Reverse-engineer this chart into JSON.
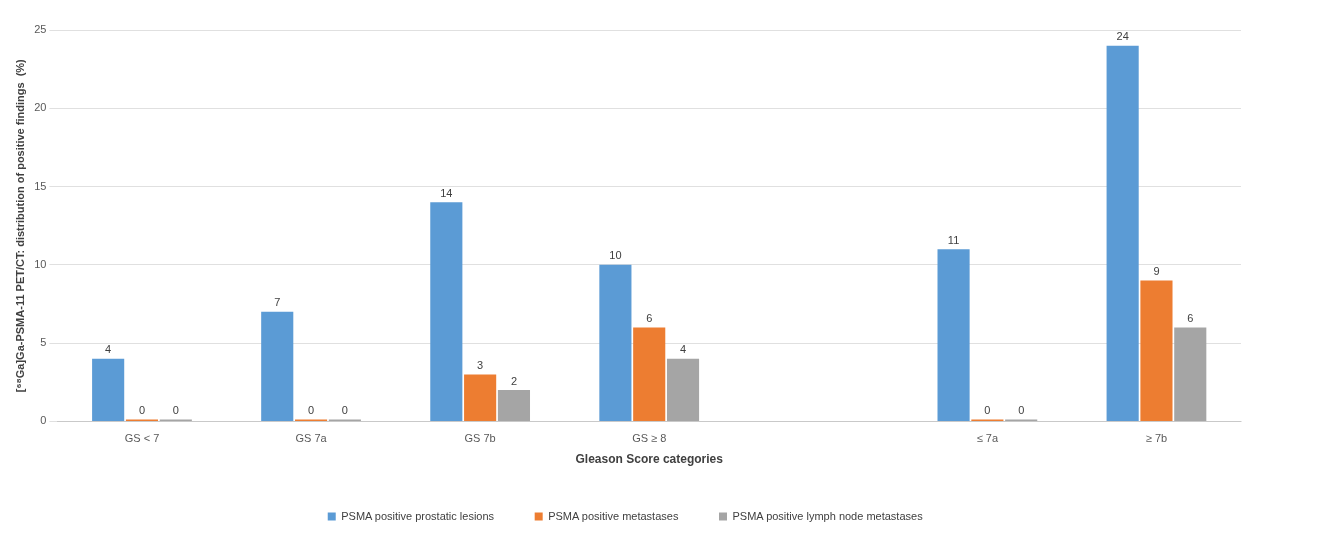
{
  "chart_data": {
    "type": "bar",
    "xlabel": "Gleason Score categories",
    "ylabel": "[⁶⁸Ga]Ga-PSMA-11 PET/CT: distribution of positive findings  (%)",
    "categories": [
      "GS < 7",
      "GS 7a",
      "GS 7b",
      "GS ≥ 8",
      null,
      "≤ 7a",
      "≥ 7b"
    ],
    "series": [
      {
        "name": "PSMA positive prostatic lesions",
        "color": "#5b9bd5",
        "values": [
          4,
          7,
          14,
          10,
          null,
          11,
          24
        ]
      },
      {
        "name": "PSMA positive metastases",
        "color": "#ed7d31",
        "values": [
          0,
          0,
          3,
          6,
          null,
          0,
          9
        ]
      },
      {
        "name": "PSMA positive lymph node metastases",
        "color": "#a5a5a5",
        "values": [
          0,
          0,
          2,
          4,
          null,
          0,
          6
        ]
      }
    ],
    "ylim": [
      0,
      25
    ],
    "yticks": [
      0,
      5,
      10,
      15,
      20,
      25
    ],
    "grid": "y",
    "legend": "bottom",
    "data_labels": true
  }
}
